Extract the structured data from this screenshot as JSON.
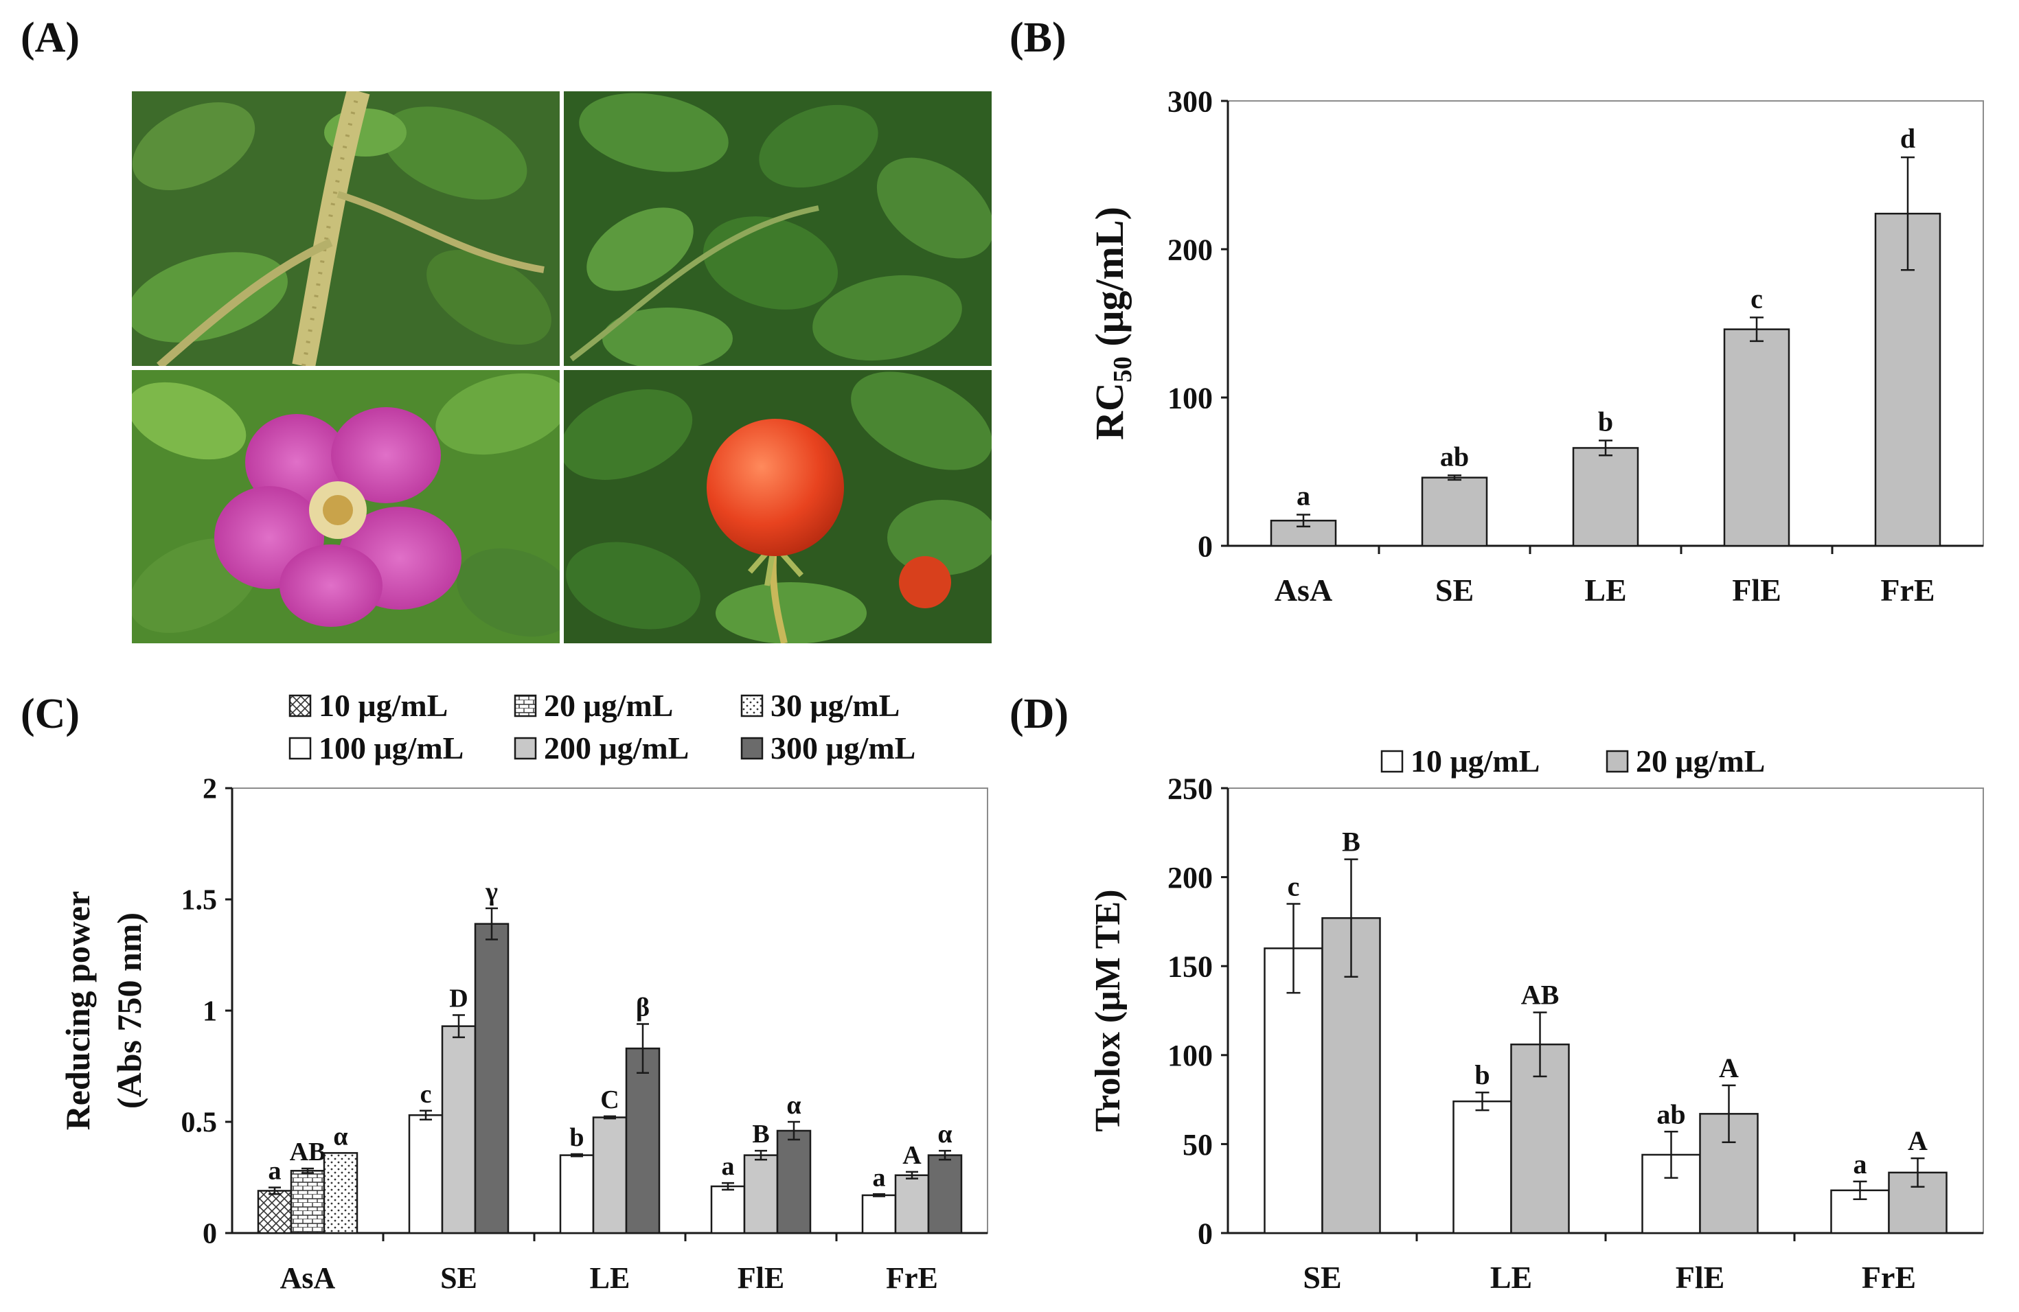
{
  "panels": {
    "a_label": "(A)",
    "b_label": "(B)",
    "c_label": "(C)",
    "d_label": "(D)"
  },
  "photos": [
    {
      "name": "rose-stem-thorns-photo",
      "subject": "stem"
    },
    {
      "name": "rose-leaves-photo",
      "subject": "leaves"
    },
    {
      "name": "rose-flower-photo",
      "subject": "flower"
    },
    {
      "name": "rose-hip-fruit-photo",
      "subject": "fruit"
    }
  ],
  "colors": {
    "bar_gray": "#bfbfbf",
    "bar_light": "#c8c8c8",
    "bar_dark": "#6b6b6b",
    "bar_white": "#ffffff",
    "outline": "#1a1a1a"
  },
  "chart_data": [
    {
      "id": "B",
      "type": "bar",
      "categories": [
        "AsA",
        "SE",
        "LE",
        "FlE",
        "FrE"
      ],
      "series": [
        {
          "name": "RC50",
          "values": [
            17,
            46,
            66,
            146,
            224
          ],
          "errors": [
            4,
            1.5,
            5,
            8,
            38
          ],
          "letters": [
            "a",
            "ab",
            "b",
            "c",
            "d"
          ]
        }
      ],
      "ylabel": "RC",
      "ylabel_sub": "50",
      "ylabel_unit": " (μg/mL)",
      "ylim": [
        0,
        300
      ],
      "yticks": [
        0,
        100,
        200,
        300
      ],
      "ytick_labels": [
        "0",
        "100",
        "200",
        "300"
      ]
    },
    {
      "id": "C",
      "type": "bar",
      "categories": [
        "AsA",
        "SE",
        "LE",
        "FlE",
        "FrE"
      ],
      "legend": [
        "10 μg/mL",
        "20 μg/mL",
        "30 μg/mL",
        "100 μg/mL",
        "200 μg/mL",
        "300 μg/mL"
      ],
      "groups": [
        {
          "category": "AsA",
          "bars": [
            {
              "legend_index": 0,
              "value": 0.19,
              "error": 0.015,
              "letter": "a"
            },
            {
              "legend_index": 1,
              "value": 0.28,
              "error": 0.01,
              "letter": "AB"
            },
            {
              "legend_index": 2,
              "value": 0.36,
              "error": 0.0,
              "letter": "α"
            }
          ]
        },
        {
          "category": "SE",
          "bars": [
            {
              "legend_index": 3,
              "value": 0.53,
              "error": 0.02,
              "letter": "c"
            },
            {
              "legend_index": 4,
              "value": 0.93,
              "error": 0.05,
              "letter": "D"
            },
            {
              "legend_index": 5,
              "value": 1.39,
              "error": 0.07,
              "letter": "γ"
            }
          ]
        },
        {
          "category": "LE",
          "bars": [
            {
              "legend_index": 3,
              "value": 0.35,
              "error": 0.005,
              "letter": "b"
            },
            {
              "legend_index": 4,
              "value": 0.52,
              "error": 0.005,
              "letter": "C"
            },
            {
              "legend_index": 5,
              "value": 0.83,
              "error": 0.11,
              "letter": "β"
            }
          ]
        },
        {
          "category": "FlE",
          "bars": [
            {
              "legend_index": 3,
              "value": 0.21,
              "error": 0.015,
              "letter": "a"
            },
            {
              "legend_index": 4,
              "value": 0.35,
              "error": 0.02,
              "letter": "B"
            },
            {
              "legend_index": 5,
              "value": 0.46,
              "error": 0.04,
              "letter": "α"
            }
          ]
        },
        {
          "category": "FrE",
          "bars": [
            {
              "legend_index": 3,
              "value": 0.17,
              "error": 0.005,
              "letter": "a"
            },
            {
              "legend_index": 4,
              "value": 0.26,
              "error": 0.015,
              "letter": "A"
            },
            {
              "legend_index": 5,
              "value": 0.35,
              "error": 0.02,
              "letter": "α"
            }
          ]
        }
      ],
      "ylabel_line1": "Reducing power",
      "ylabel_line2": "(Abs 750 nm)",
      "ylim": [
        0,
        2
      ],
      "yticks": [
        0,
        0.5,
        1,
        1.5,
        2
      ],
      "ytick_labels": [
        "0",
        "0.5",
        "1",
        "1.5",
        "2"
      ]
    },
    {
      "id": "D",
      "type": "bar",
      "categories": [
        "SE",
        "LE",
        "FlE",
        "FrE"
      ],
      "series": [
        {
          "name": "10 μg/mL",
          "values": [
            160,
            74,
            44,
            24
          ],
          "errors": [
            25,
            5,
            13,
            5
          ],
          "letters": [
            "c",
            "b",
            "ab",
            "a"
          ]
        },
        {
          "name": "20 μg/mL",
          "values": [
            177,
            106,
            67,
            34
          ],
          "errors": [
            33,
            18,
            16,
            8
          ],
          "letters": [
            "B",
            "AB",
            "A",
            "A"
          ]
        }
      ],
      "ylabel": "Trolox (μM TE)",
      "ylim": [
        0,
        250
      ],
      "yticks": [
        0,
        50,
        100,
        150,
        200,
        250
      ],
      "ytick_labels": [
        "0",
        "50",
        "100",
        "150",
        "200",
        "250"
      ]
    }
  ]
}
